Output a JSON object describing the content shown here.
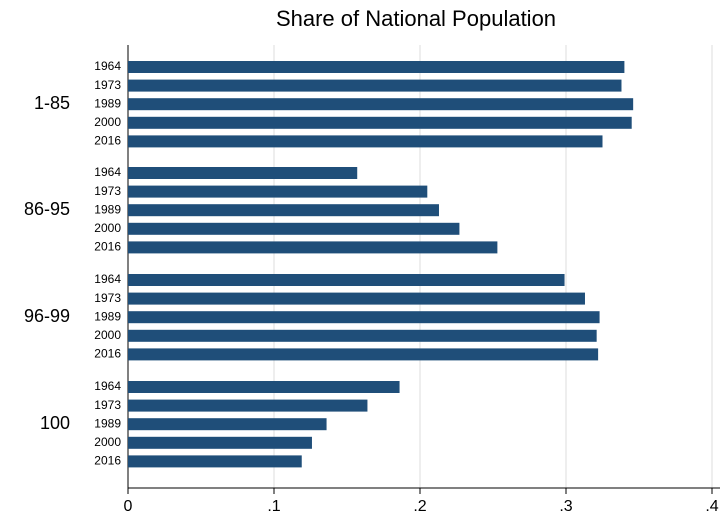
{
  "chart_data": {
    "type": "bar",
    "orientation": "horizontal",
    "title": "Share of National Population",
    "color": "#1f4e79",
    "groups": [
      {
        "label": "1-85",
        "categories": [
          "1964",
          "1973",
          "1989",
          "2000",
          "2016"
        ],
        "values": [
          0.34,
          0.338,
          0.346,
          0.345,
          0.325
        ]
      },
      {
        "label": "86-95",
        "categories": [
          "1964",
          "1973",
          "1989",
          "2000",
          "2016"
        ],
        "values": [
          0.157,
          0.205,
          0.213,
          0.227,
          0.253
        ]
      },
      {
        "label": "96-99",
        "categories": [
          "1964",
          "1973",
          "1989",
          "2000",
          "2016"
        ],
        "values": [
          0.299,
          0.313,
          0.323,
          0.321,
          0.322
        ]
      },
      {
        "label": "100",
        "categories": [
          "1964",
          "1973",
          "1989",
          "2000",
          "2016"
        ],
        "values": [
          0.186,
          0.164,
          0.136,
          0.126,
          0.119
        ]
      }
    ],
    "xlim": [
      0,
      0.4
    ],
    "xticks": [
      0,
      {
        "value": 0.1,
        "label": ".1"
      },
      {
        "value": 0.2,
        "label": ".2"
      },
      {
        "value": 0.3,
        "label": ".3"
      },
      {
        "value": 0.4,
        "label": ".4"
      }
    ],
    "grid": true
  }
}
